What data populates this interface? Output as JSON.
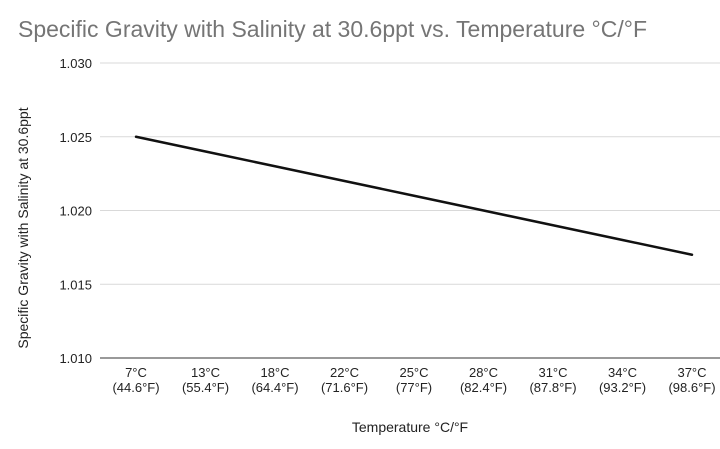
{
  "chart_data": {
    "type": "line",
    "title": "Specific Gravity with Salinity at 30.6ppt vs. Temperature °C/°F",
    "xlabel": "Temperature °C/°F",
    "ylabel": "Specific Gravity with Salinity at 30.6ppt",
    "categories": [
      [
        "7°C",
        "(44.6°F)"
      ],
      [
        "13°C",
        "(55.4°F)"
      ],
      [
        "18°C",
        "(64.4°F)"
      ],
      [
        "22°C",
        "(71.6°F)"
      ],
      [
        "25°C",
        "(77°F)"
      ],
      [
        "28°C",
        "(82.4°F)"
      ],
      [
        "31°C",
        "(87.8°F)"
      ],
      [
        "34°C",
        "(93.2°F)"
      ],
      [
        "37°C",
        "(98.6°F)"
      ]
    ],
    "series": [
      {
        "name": "Specific Gravity with Salinity at 30.6ppt",
        "values": [
          1.025,
          1.024,
          1.023,
          1.022,
          1.021,
          1.02,
          1.019,
          1.018,
          1.017
        ]
      }
    ],
    "ylim": [
      1.01,
      1.03
    ],
    "yticks": [
      "1.010",
      "1.015",
      "1.020",
      "1.025",
      "1.030"
    ],
    "grid": true,
    "legend": "none",
    "colors": {
      "line": "#111111",
      "grid": "#d9d9d9",
      "title": "#757575"
    }
  }
}
